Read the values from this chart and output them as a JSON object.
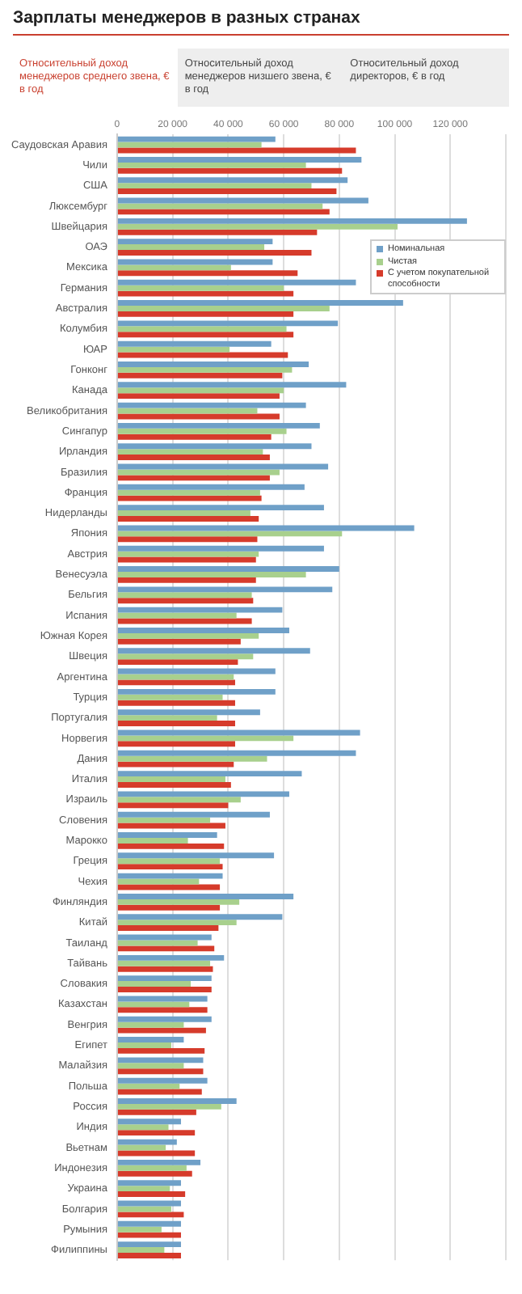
{
  "chart_data": {
    "type": "bar",
    "orientation": "horizontal",
    "title": "Зарплаты менеджеров в разных странах",
    "annotations": [
      "Относительный доход менеджеров среднего звена, € в год",
      "Относительный доход менеджеров низшего звена, € в год",
      "Относительный доход директоров, € в год"
    ],
    "categories": [
      "Саудовская Аравия",
      "Чили",
      "США",
      "Люксембург",
      "Швейцария",
      "ОАЭ",
      "Мексика",
      "Германия",
      "Австралия",
      "Колумбия",
      "ЮАР",
      "Гонконг",
      "Канада",
      "Великобритания",
      "Сингапур",
      "Ирландия",
      "Бразилия",
      "Франция",
      "Нидерланды",
      "Япония",
      "Австрия",
      "Венесуэла",
      "Бельгия",
      "Испания",
      "Южная Корея",
      "Швеция",
      "Аргентина",
      "Турция",
      "Португалия",
      "Норвегия",
      "Дания",
      "Италия",
      "Израиль",
      "Словения",
      "Марокко",
      "Греция",
      "Чехия",
      "Финляндия",
      "Китай",
      "Таиланд",
      "Тайвань",
      "Словакия",
      "Казахстан",
      "Венгрия",
      "Египет",
      "Малайзия",
      "Польша",
      "Россия",
      "Индия",
      "Вьетнам",
      "Индонезия",
      "Украина",
      "Болгария",
      "Румыния",
      "Филиппины"
    ],
    "series": [
      {
        "name": "Номинальная",
        "color": "#6fa0c8",
        "values": [
          57000,
          88000,
          83000,
          90500,
          126000,
          56000,
          56000,
          86000,
          103000,
          79500,
          55500,
          69000,
          82500,
          68000,
          73000,
          70000,
          76000,
          67500,
          74500,
          107000,
          74500,
          80000,
          77500,
          59500,
          62000,
          69500,
          57000,
          57000,
          51500,
          87500,
          86000,
          66500,
          62000,
          55000,
          36000,
          56500,
          38000,
          63500,
          59500,
          34000,
          38500,
          34000,
          32500,
          34000,
          24000,
          31000,
          32500,
          43000,
          23000,
          21500,
          30000,
          23000,
          23000,
          23000,
          23000
        ]
      },
      {
        "name": "Чистая",
        "color": "#a8d08d",
        "values": [
          52000,
          68000,
          70000,
          74000,
          101000,
          53000,
          41000,
          60000,
          76500,
          61000,
          40500,
          63000,
          60000,
          50500,
          61000,
          52500,
          58500,
          51500,
          48000,
          81000,
          51000,
          68000,
          48500,
          43000,
          51000,
          49000,
          42000,
          38000,
          36000,
          63500,
          54000,
          39000,
          44500,
          33500,
          25500,
          37000,
          29500,
          44000,
          43000,
          29000,
          33500,
          26500,
          26000,
          24000,
          19500,
          24000,
          22500,
          37500,
          18500,
          17500,
          25000,
          19000,
          19500,
          16000,
          17000
        ]
      },
      {
        "name": "С учетом покупательной способности",
        "color": "#d63b2b",
        "values": [
          86000,
          81000,
          79000,
          76500,
          72000,
          70000,
          65000,
          63500,
          63500,
          63500,
          61500,
          59500,
          58500,
          58500,
          55500,
          55000,
          55000,
          52000,
          51000,
          50500,
          50000,
          50000,
          49000,
          48500,
          44500,
          43500,
          42500,
          42500,
          42500,
          42500,
          42000,
          41000,
          40000,
          39000,
          38500,
          38000,
          37000,
          37000,
          36500,
          35000,
          34500,
          34000,
          32500,
          32000,
          31500,
          31000,
          30500,
          28500,
          28000,
          28000,
          27000,
          24500,
          24000,
          23000,
          23000
        ]
      }
    ],
    "xlim": [
      0,
      140000
    ],
    "xticks": [
      0,
      {
        "value": 20000,
        "label": "20 000"
      },
      {
        "value": 40000,
        "label": "40 000"
      },
      {
        "value": 60000,
        "label": "60 000"
      },
      {
        "value": 80000,
        "label": "80 000"
      },
      {
        "value": 100000,
        "label": "100 000"
      },
      {
        "value": 120000,
        "label": "120 000"
      },
      {
        "value": 140000,
        "label": null
      }
    ],
    "grid": "x",
    "legend": "top right"
  }
}
